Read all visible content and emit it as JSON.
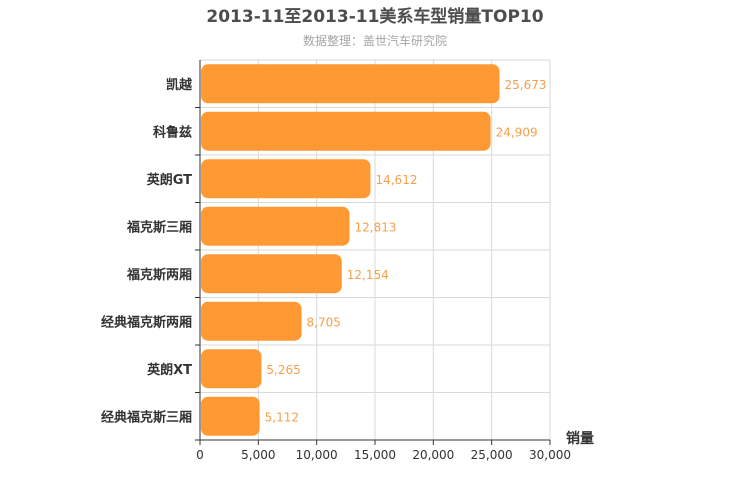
{
  "chart_data": {
    "type": "bar",
    "orientation": "horizontal",
    "title": "2013-11至2013-11美系车型销量TOP10",
    "subtitle": "数据整理：盖世汽车研究院",
    "categories": [
      "凯越",
      "科鲁兹",
      "英朗GT",
      "福克斯三厢",
      "福克斯两厢",
      "经典福克斯两厢",
      "英朗XT",
      "经典福克斯三厢"
    ],
    "values": [
      25673,
      24909,
      14612,
      12813,
      12154,
      8705,
      5265,
      5112
    ],
    "data_labels": [
      "25,673",
      "24,909",
      "14,612",
      "12,813",
      "12,154",
      "8,705",
      "5,265",
      "5,112"
    ],
    "xlabel": "销量",
    "xlim": [
      0,
      30000
    ],
    "ticks": [
      0,
      5000,
      10000,
      15000,
      20000,
      25000,
      30000
    ],
    "tick_labels": [
      "0",
      "5,000",
      "10,000",
      "15,000",
      "20,000",
      "25,000",
      "30,000"
    ],
    "grid": true,
    "colors": {
      "bar": "#ff9933",
      "data_label": "#f7a04b",
      "grid": "#d9d9d9",
      "axis": "#333333"
    }
  }
}
